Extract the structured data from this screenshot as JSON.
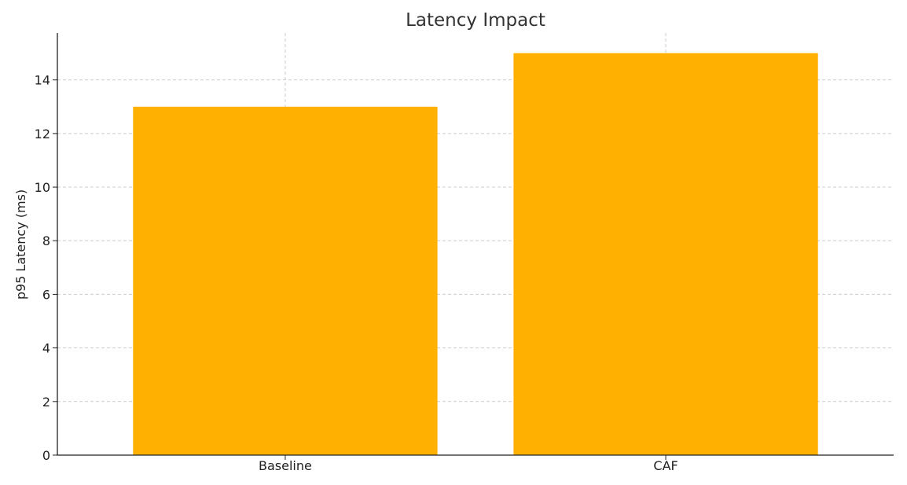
{
  "chart_data": {
    "type": "bar",
    "title": "Latency Impact",
    "xlabel": "",
    "ylabel": "p95 Latency (ms)",
    "categories": [
      "Baseline",
      "CAF"
    ],
    "values": [
      13,
      15
    ],
    "ylim": [
      0,
      15.75
    ],
    "yticks": [
      0,
      2,
      4,
      6,
      8,
      10,
      12,
      14
    ],
    "grid": true,
    "bar_color": "#FFB000"
  }
}
